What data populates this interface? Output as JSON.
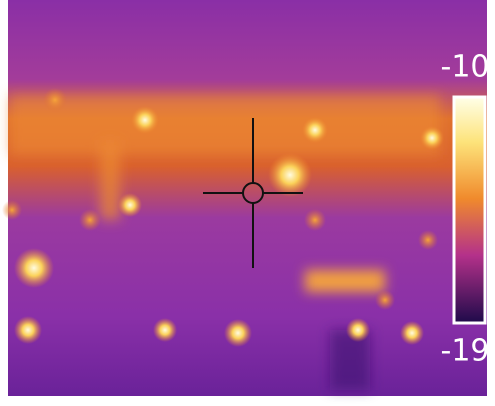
{
  "scale": {
    "max_label": -10,
    "min_label": -19
  }
}
